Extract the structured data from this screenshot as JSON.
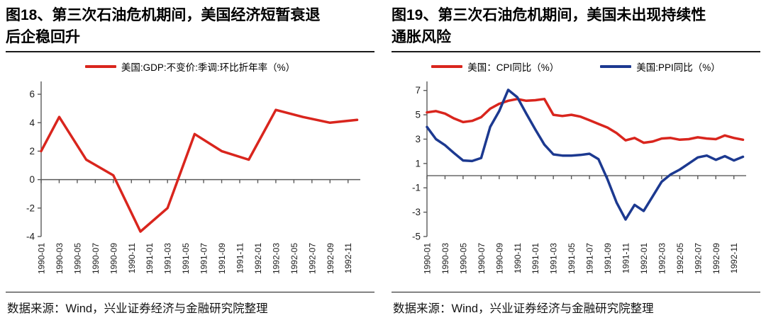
{
  "source_note": "数据来源：Wind，兴业证券经济与金融研究院整理",
  "colors": {
    "red": "#d9251d",
    "blue": "#1c3990",
    "axis": "#5a5a5a"
  },
  "chart_data": [
    {
      "type": "line",
      "figure_label": "图18",
      "title": "图18、第三次石油危机期间，美国经济短暂衰退后企稳回升",
      "title_lines": [
        "图18、第三次石油危机期间，美国经济短暂衰退",
        "后企稳回升"
      ],
      "legend_position": "top-center",
      "grid": false,
      "xlabel": "",
      "ylabel": "",
      "ylim": [
        -4,
        6.9
      ],
      "yticks": [
        6,
        4,
        2,
        0,
        -2,
        -4
      ],
      "x_range_months": [
        0,
        35.2
      ],
      "x_tick_labels": [
        "1990-01",
        "1990-03",
        "1990-05",
        "1990-07",
        "1990-09",
        "1990-11",
        "1991-01",
        "1991-03",
        "1991-05",
        "1991-07",
        "1991-09",
        "1991-11",
        "1992-01",
        "1992-03",
        "1992-05",
        "1992-07",
        "1992-09",
        "1992-11"
      ],
      "series": [
        {
          "key": "gdp",
          "name": "美国:GDP:不变价:季调:环比折年率（%）",
          "color": "#d9251d",
          "points": [
            [
              0,
              2.0
            ],
            [
              2,
              4.4
            ],
            [
              5,
              1.4
            ],
            [
              8,
              0.3
            ],
            [
              11,
              -3.65
            ],
            [
              14,
              -2.0
            ],
            [
              17,
              3.2
            ],
            [
              20,
              2.0
            ],
            [
              23,
              1.4
            ],
            [
              26,
              4.9
            ],
            [
              29,
              4.4
            ],
            [
              32,
              4.0
            ],
            [
              35,
              4.2
            ]
          ]
        }
      ]
    },
    {
      "type": "line",
      "figure_label": "图19",
      "title": "图19、第三次石油危机期间，美国未出现持续性通胀风险",
      "title_lines": [
        "图19、第三次石油危机期间，美国未出现持续性",
        "通胀风险"
      ],
      "legend_position": "top-center",
      "grid": false,
      "xlabel": "",
      "ylabel": "",
      "ylim": [
        -5,
        7.74
      ],
      "yticks": [
        7,
        5,
        3,
        1,
        -1,
        -3,
        -5
      ],
      "x_range_months": [
        0,
        35.2
      ],
      "x_tick_labels": [
        "1990-01",
        "1990-03",
        "1990-05",
        "1990-07",
        "1990-09",
        "1990-11",
        "1991-01",
        "1991-03",
        "1991-05",
        "1991-07",
        "1991-09",
        "1991-11",
        "1992-01",
        "1992-03",
        "1992-05",
        "1992-07",
        "1992-09",
        "1992-11"
      ],
      "series": [
        {
          "key": "cpi",
          "name": "美国：CPI同比（%）",
          "color": "#d9251d",
          "start_month": 0,
          "values": [
            5.2,
            5.3,
            5.1,
            4.7,
            4.4,
            4.5,
            4.8,
            5.5,
            5.9,
            6.15,
            6.3,
            6.15,
            6.2,
            6.3,
            5.0,
            4.9,
            5.0,
            4.85,
            4.55,
            4.25,
            3.95,
            3.5,
            2.9,
            3.1,
            2.7,
            2.8,
            3.05,
            3.1,
            2.95,
            3.0,
            3.15,
            3.05,
            3.0,
            3.3,
            3.1,
            2.95
          ]
        },
        {
          "key": "ppi",
          "name": "美国:PPI同比（%）",
          "color": "#1c3990",
          "start_month": 0,
          "values": [
            4.0,
            3.0,
            2.5,
            1.85,
            1.25,
            1.2,
            1.45,
            4.0,
            5.3,
            7.05,
            6.45,
            5.1,
            3.8,
            2.55,
            1.75,
            1.65,
            1.65,
            1.7,
            1.8,
            1.35,
            -0.3,
            -2.2,
            -3.6,
            -2.4,
            -2.9,
            -1.7,
            -0.5,
            0.1,
            0.5,
            1.0,
            1.5,
            1.65,
            1.3,
            1.6,
            1.25,
            1.55
          ]
        }
      ]
    }
  ]
}
